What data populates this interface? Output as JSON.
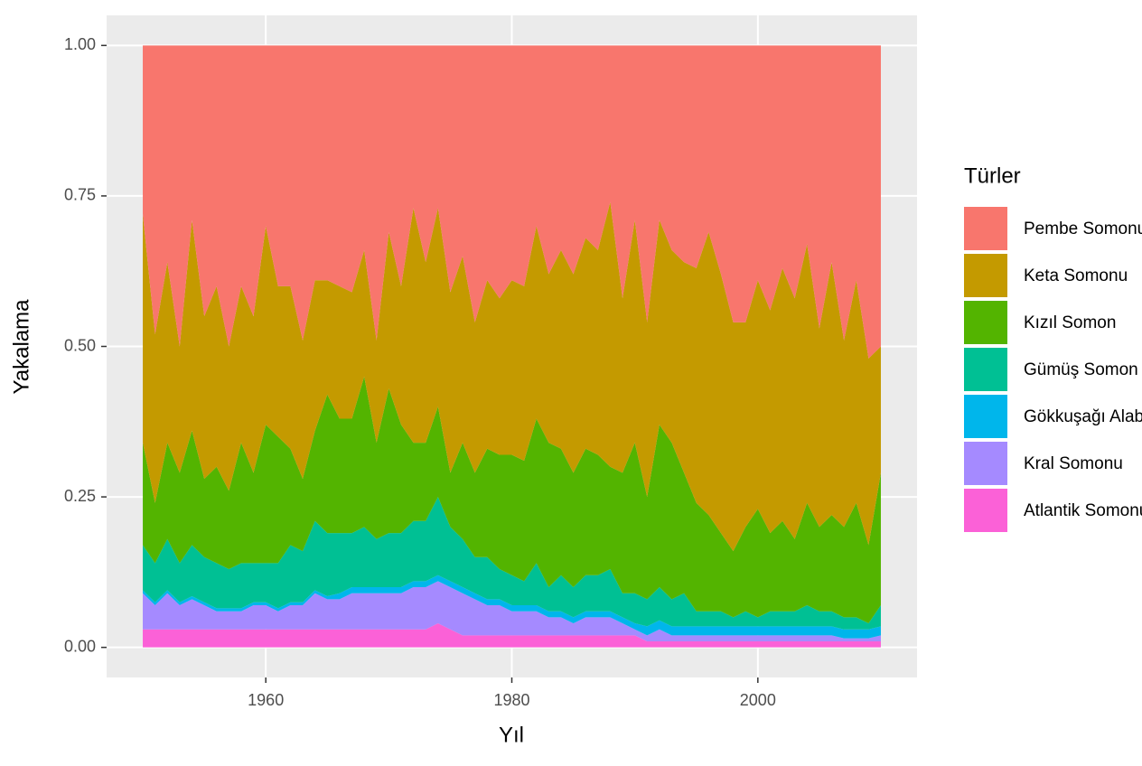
{
  "chart_data": {
    "type": "stacked_area",
    "x_label": "Yıl",
    "y_label": "Yakalama",
    "legend_title": "Türler",
    "legend_position": "right",
    "grid": true,
    "x": [
      1950,
      1951,
      1952,
      1953,
      1954,
      1955,
      1956,
      1957,
      1958,
      1959,
      1960,
      1961,
      1962,
      1963,
      1964,
      1965,
      1966,
      1967,
      1968,
      1969,
      1970,
      1971,
      1972,
      1973,
      1974,
      1975,
      1976,
      1977,
      1978,
      1979,
      1980,
      1981,
      1982,
      1983,
      1984,
      1985,
      1986,
      1987,
      1988,
      1989,
      1990,
      1991,
      1992,
      1993,
      1994,
      1995,
      1996,
      1997,
      1998,
      1999,
      2000,
      2001,
      2002,
      2003,
      2004,
      2005,
      2006,
      2007,
      2008,
      2009,
      2010
    ],
    "xlim": [
      1947.06,
      2012.94
    ],
    "xticks": [
      1960,
      1980,
      2000
    ],
    "ylim": [
      -0.05,
      1.05
    ],
    "yticks": [
      {
        "value": 0,
        "label": "0.00"
      },
      {
        "value": 0.25,
        "label": "0.25"
      },
      {
        "value": 0.5,
        "label": "0.50"
      },
      {
        "value": 0.75,
        "label": "0.75"
      },
      {
        "value": 1,
        "label": "1.00"
      }
    ],
    "series": [
      {
        "name": "Pembe Somonu",
        "color": "#F8766D",
        "values": [
          0.28,
          0.48,
          0.36,
          0.5,
          0.29,
          0.45,
          0.4,
          0.5,
          0.4,
          0.45,
          0.3,
          0.4,
          0.4,
          0.49,
          0.39,
          0.39,
          0.4,
          0.41,
          0.34,
          0.49,
          0.31,
          0.4,
          0.27,
          0.36,
          0.27,
          0.41,
          0.35,
          0.46,
          0.39,
          0.42,
          0.39,
          0.4,
          0.3,
          0.38,
          0.34,
          0.38,
          0.32,
          0.34,
          0.26,
          0.42,
          0.29,
          0.46,
          0.29,
          0.34,
          0.36,
          0.37,
          0.31,
          0.38,
          0.46,
          0.46,
          0.39,
          0.44,
          0.37,
          0.42,
          0.33,
          0.47,
          0.36,
          0.49,
          0.39,
          0.52,
          0.5
        ]
      },
      {
        "name": "Keta Somonu",
        "color": "#C49A00",
        "values": [
          0.38,
          0.28,
          0.3,
          0.21,
          0.35,
          0.27,
          0.3,
          0.24,
          0.26,
          0.26,
          0.33,
          0.25,
          0.27,
          0.23,
          0.25,
          0.19,
          0.22,
          0.21,
          0.21,
          0.17,
          0.26,
          0.23,
          0.39,
          0.3,
          0.33,
          0.3,
          0.31,
          0.25,
          0.28,
          0.26,
          0.29,
          0.29,
          0.32,
          0.28,
          0.33,
          0.33,
          0.35,
          0.34,
          0.44,
          0.29,
          0.37,
          0.29,
          0.34,
          0.32,
          0.35,
          0.39,
          0.47,
          0.43,
          0.38,
          0.34,
          0.38,
          0.37,
          0.42,
          0.4,
          0.43,
          0.33,
          0.42,
          0.31,
          0.37,
          0.31,
          0.21
        ]
      },
      {
        "name": "Kızıl Somon",
        "color": "#53B400",
        "values": [
          0.17,
          0.1,
          0.16,
          0.15,
          0.19,
          0.13,
          0.16,
          0.13,
          0.2,
          0.15,
          0.23,
          0.21,
          0.16,
          0.12,
          0.15,
          0.23,
          0.19,
          0.19,
          0.25,
          0.16,
          0.24,
          0.18,
          0.13,
          0.13,
          0.15,
          0.09,
          0.16,
          0.14,
          0.18,
          0.19,
          0.2,
          0.2,
          0.24,
          0.24,
          0.21,
          0.19,
          0.21,
          0.2,
          0.17,
          0.2,
          0.25,
          0.17,
          0.27,
          0.26,
          0.2,
          0.18,
          0.16,
          0.13,
          0.11,
          0.14,
          0.18,
          0.13,
          0.15,
          0.12,
          0.17,
          0.14,
          0.16,
          0.15,
          0.19,
          0.13,
          0.22
        ]
      },
      {
        "name": "Gümüş Somon",
        "color": "#00C094",
        "values": [
          0.075,
          0.065,
          0.085,
          0.065,
          0.085,
          0.075,
          0.075,
          0.065,
          0.075,
          0.065,
          0.065,
          0.075,
          0.095,
          0.085,
          0.115,
          0.105,
          0.1,
          0.09,
          0.1,
          0.08,
          0.09,
          0.09,
          0.1,
          0.1,
          0.13,
          0.09,
          0.08,
          0.06,
          0.07,
          0.05,
          0.05,
          0.04,
          0.07,
          0.04,
          0.06,
          0.05,
          0.06,
          0.06,
          0.07,
          0.04,
          0.05,
          0.045,
          0.055,
          0.045,
          0.055,
          0.025,
          0.025,
          0.025,
          0.015,
          0.025,
          0.015,
          0.025,
          0.025,
          0.025,
          0.035,
          0.025,
          0.025,
          0.02,
          0.02,
          0.01,
          0.035
        ]
      },
      {
        "name": "Gökkuşağı Alabalığı",
        "color": "#00B6EB",
        "values": [
          0.005,
          0.005,
          0.005,
          0.005,
          0.005,
          0.005,
          0.005,
          0.005,
          0.005,
          0.005,
          0.005,
          0.005,
          0.005,
          0.005,
          0.005,
          0.005,
          0.01,
          0.01,
          0.01,
          0.01,
          0.01,
          0.01,
          0.01,
          0.01,
          0.01,
          0.01,
          0.01,
          0.01,
          0.01,
          0.01,
          0.01,
          0.01,
          0.01,
          0.01,
          0.01,
          0.01,
          0.01,
          0.01,
          0.01,
          0.01,
          0.01,
          0.015,
          0.015,
          0.015,
          0.015,
          0.015,
          0.015,
          0.015,
          0.015,
          0.015,
          0.015,
          0.015,
          0.015,
          0.015,
          0.015,
          0.015,
          0.015,
          0.015,
          0.015,
          0.015,
          0.015
        ]
      },
      {
        "name": "Kral Somonu",
        "color": "#A58AFF",
        "values": [
          0.06,
          0.04,
          0.06,
          0.04,
          0.05,
          0.04,
          0.03,
          0.03,
          0.03,
          0.04,
          0.04,
          0.03,
          0.04,
          0.04,
          0.06,
          0.05,
          0.05,
          0.06,
          0.06,
          0.06,
          0.06,
          0.06,
          0.07,
          0.07,
          0.07,
          0.07,
          0.07,
          0.06,
          0.05,
          0.05,
          0.04,
          0.04,
          0.04,
          0.03,
          0.03,
          0.02,
          0.03,
          0.03,
          0.03,
          0.02,
          0.01,
          0.01,
          0.02,
          0.01,
          0.01,
          0.01,
          0.01,
          0.01,
          0.01,
          0.01,
          0.01,
          0.01,
          0.01,
          0.01,
          0.01,
          0.01,
          0.01,
          0.005,
          0.005,
          0.005,
          0.01
        ]
      },
      {
        "name": "Atlantik Somonu",
        "color": "#FB61D7",
        "values": [
          0.03,
          0.03,
          0.03,
          0.03,
          0.03,
          0.03,
          0.03,
          0.03,
          0.03,
          0.03,
          0.03,
          0.03,
          0.03,
          0.03,
          0.03,
          0.03,
          0.03,
          0.03,
          0.03,
          0.03,
          0.03,
          0.03,
          0.03,
          0.03,
          0.04,
          0.03,
          0.02,
          0.02,
          0.02,
          0.02,
          0.02,
          0.02,
          0.02,
          0.02,
          0.02,
          0.02,
          0.02,
          0.02,
          0.02,
          0.02,
          0.02,
          0.01,
          0.01,
          0.01,
          0.01,
          0.01,
          0.01,
          0.01,
          0.01,
          0.01,
          0.01,
          0.01,
          0.01,
          0.01,
          0.01,
          0.01,
          0.01,
          0.01,
          0.01,
          0.01,
          0.01
        ]
      }
    ]
  }
}
